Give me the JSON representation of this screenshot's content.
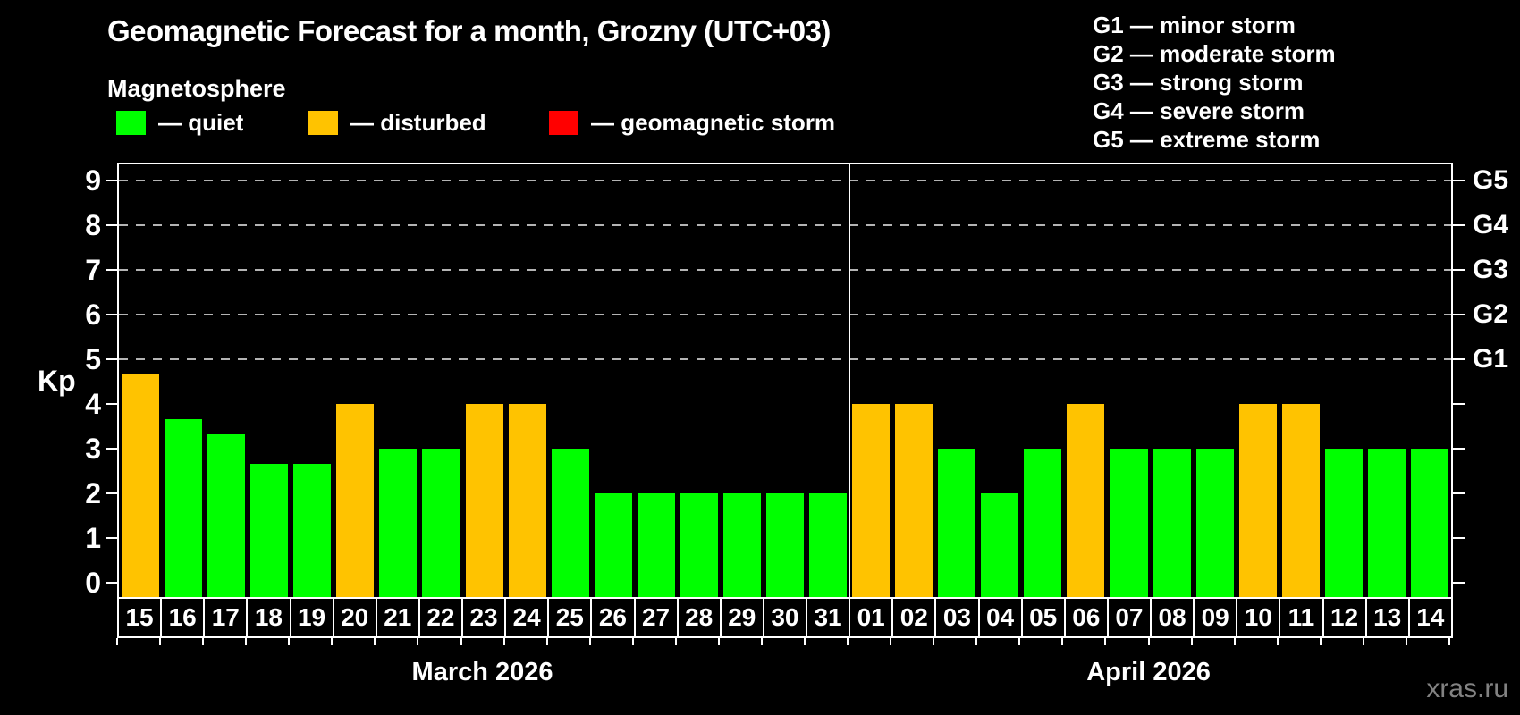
{
  "header": {
    "title": "Geomagnetic Forecast for a month, Grozny (UTC+03)",
    "subtitle": "Magnetosphere"
  },
  "legend": {
    "items": [
      {
        "name": "quiet",
        "label": "— quiet",
        "color": "#00ff00"
      },
      {
        "name": "disturbed",
        "label": "— disturbed",
        "color": "#ffc300"
      },
      {
        "name": "storm",
        "label": "— geomagnetic storm",
        "color": "#ff0000"
      }
    ]
  },
  "g_scale_legend": {
    "items": [
      "G1 — minor storm",
      "G2 — moderate storm",
      "G3 — strong storm",
      "G4 — severe storm",
      "G5 — extreme storm"
    ]
  },
  "watermark": "xras.ru",
  "chart_data": {
    "type": "bar",
    "title": "Geomagnetic Forecast for a month, Grozny (UTC+03)",
    "ylabel": "Kp",
    "ylim": [
      0,
      9
    ],
    "grid": "dashed horizontal lines at Kp 5-9 only",
    "left_ticks": [
      0,
      1,
      2,
      3,
      4,
      5,
      6,
      7,
      8,
      9
    ],
    "right_axis_labels": [
      {
        "kp": 5,
        "label": "G1"
      },
      {
        "kp": 6,
        "label": "G2"
      },
      {
        "kp": 7,
        "label": "G3"
      },
      {
        "kp": 8,
        "label": "G4"
      },
      {
        "kp": 9,
        "label": "G5"
      }
    ],
    "status_colors": {
      "quiet": "#00ff00",
      "disturbed": "#ffc300",
      "storm": "#ff0000"
    },
    "months": [
      {
        "label": "March 2026",
        "days": [
          {
            "day": "15",
            "kp": 4.67,
            "status": "disturbed"
          },
          {
            "day": "16",
            "kp": 3.67,
            "status": "quiet"
          },
          {
            "day": "17",
            "kp": 3.33,
            "status": "quiet"
          },
          {
            "day": "18",
            "kp": 2.67,
            "status": "quiet"
          },
          {
            "day": "19",
            "kp": 2.67,
            "status": "quiet"
          },
          {
            "day": "20",
            "kp": 4,
            "status": "disturbed"
          },
          {
            "day": "21",
            "kp": 3,
            "status": "quiet"
          },
          {
            "day": "22",
            "kp": 3,
            "status": "quiet"
          },
          {
            "day": "23",
            "kp": 4,
            "status": "disturbed"
          },
          {
            "day": "24",
            "kp": 4,
            "status": "disturbed"
          },
          {
            "day": "25",
            "kp": 3,
            "status": "quiet"
          },
          {
            "day": "26",
            "kp": 2,
            "status": "quiet"
          },
          {
            "day": "27",
            "kp": 2,
            "status": "quiet"
          },
          {
            "day": "28",
            "kp": 2,
            "status": "quiet"
          },
          {
            "day": "29",
            "kp": 2,
            "status": "quiet"
          },
          {
            "day": "30",
            "kp": 2,
            "status": "quiet"
          },
          {
            "day": "31",
            "kp": 2,
            "status": "quiet"
          }
        ]
      },
      {
        "label": "April 2026",
        "days": [
          {
            "day": "01",
            "kp": 4,
            "status": "disturbed"
          },
          {
            "day": "02",
            "kp": 4,
            "status": "disturbed"
          },
          {
            "day": "03",
            "kp": 3,
            "status": "quiet"
          },
          {
            "day": "04",
            "kp": 2,
            "status": "quiet"
          },
          {
            "day": "05",
            "kp": 3,
            "status": "quiet"
          },
          {
            "day": "06",
            "kp": 4,
            "status": "disturbed"
          },
          {
            "day": "07",
            "kp": 3,
            "status": "quiet"
          },
          {
            "day": "08",
            "kp": 3,
            "status": "quiet"
          },
          {
            "day": "09",
            "kp": 3,
            "status": "quiet"
          },
          {
            "day": "10",
            "kp": 4,
            "status": "disturbed"
          },
          {
            "day": "11",
            "kp": 4,
            "status": "disturbed"
          },
          {
            "day": "12",
            "kp": 3,
            "status": "quiet"
          },
          {
            "day": "13",
            "kp": 3,
            "status": "quiet"
          },
          {
            "day": "14",
            "kp": 3,
            "status": "quiet"
          }
        ]
      }
    ]
  }
}
